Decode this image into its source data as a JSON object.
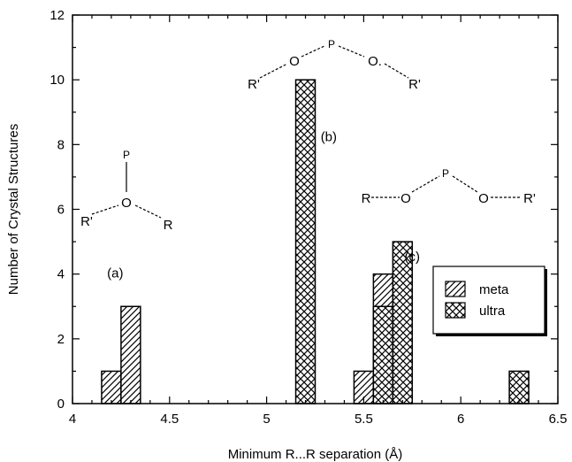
{
  "chart_data": {
    "type": "bar",
    "xlabel": "Minimum R...R separation  (Å)",
    "ylabel": "Number of Crystal Structures",
    "xlim": [
      4,
      6.5
    ],
    "ylim": [
      0,
      12
    ],
    "x_ticks": [
      "4",
      "4.5",
      "5",
      "5.5",
      "6",
      "6.5"
    ],
    "y_ticks": [
      "0",
      "2",
      "4",
      "6",
      "8",
      "10",
      "12"
    ],
    "grid": false,
    "legend_position": "right",
    "bin_width": 0.1,
    "series": [
      {
        "name": "meta",
        "pattern": "diagonal-hatch",
        "bars": [
          {
            "x": 4.2,
            "value": 1
          },
          {
            "x": 4.3,
            "value": 3
          },
          {
            "x": 5.5,
            "value": 1
          },
          {
            "x": 5.6,
            "value": 4
          }
        ]
      },
      {
        "name": "ultra",
        "pattern": "cross-hatch",
        "bars": [
          {
            "x": 5.2,
            "value": 10
          },
          {
            "x": 5.6,
            "value": 3
          },
          {
            "x": 5.7,
            "value": 5
          },
          {
            "x": 6.3,
            "value": 1
          }
        ]
      }
    ],
    "annotations": [
      {
        "label": "(a)",
        "x": 4.22,
        "y": 3.9
      },
      {
        "label": "(b)",
        "x": 5.32,
        "y": 8.1
      },
      {
        "label": "(c)",
        "x": 5.75,
        "y": 4.4
      }
    ],
    "structures": {
      "a": {
        "p": "P",
        "o": "O",
        "r_left": "R'",
        "r_right": "R"
      },
      "b": {
        "p": "P",
        "o1": "O",
        "o2": "O.",
        "r_left": "R'",
        "r_right": "R'"
      },
      "c": {
        "p": "P",
        "o1": "O",
        "o2": "O",
        "r_left": "R",
        "r_right": "R'"
      }
    }
  }
}
